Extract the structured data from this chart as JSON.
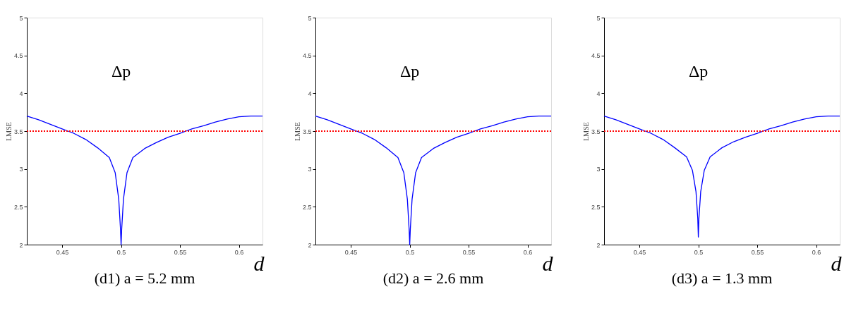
{
  "chart_data": [
    {
      "type": "line",
      "title": "(d1)  a = 5.2  mm",
      "xlabel": "d",
      "ylabel": "LMSE",
      "xlim": [
        0.42,
        0.62
      ],
      "ylim": [
        2,
        5
      ],
      "xticks": [
        0.45,
        0.5,
        0.55,
        0.6
      ],
      "yticks": [
        2,
        2.5,
        3,
        3.5,
        4,
        4.5,
        5
      ],
      "grid": false,
      "legend": false,
      "x": [
        0.42,
        0.43,
        0.44,
        0.45,
        0.455,
        0.46,
        0.47,
        0.48,
        0.49,
        0.495,
        0.498,
        0.4995,
        0.5,
        0.5005,
        0.502,
        0.505,
        0.51,
        0.52,
        0.53,
        0.54,
        0.55,
        0.555,
        0.56,
        0.57,
        0.58,
        0.59,
        0.6,
        0.61,
        0.62
      ],
      "series": [
        {
          "name": "Δp",
          "color": "#0000ff",
          "values": [
            3.7,
            3.65,
            3.59,
            3.53,
            3.5,
            3.47,
            3.39,
            3.28,
            3.15,
            2.95,
            2.6,
            2.2,
            2.0,
            2.2,
            2.6,
            2.95,
            3.15,
            3.27,
            3.35,
            3.42,
            3.47,
            3.5,
            3.53,
            3.57,
            3.62,
            3.66,
            3.69,
            3.7,
            3.7
          ]
        }
      ],
      "ref_lines": [
        {
          "axis": "y",
          "value": 3.5,
          "color": "#ff0000",
          "line_style": "dotted"
        }
      ]
    },
    {
      "type": "line",
      "title": "(d2)  a = 2.6  mm",
      "xlabel": "d",
      "ylabel": "LMSE",
      "xlim": [
        0.42,
        0.62
      ],
      "ylim": [
        2,
        5
      ],
      "xticks": [
        0.45,
        0.5,
        0.55,
        0.6
      ],
      "yticks": [
        2,
        2.5,
        3,
        3.5,
        4,
        4.5,
        5
      ],
      "grid": false,
      "legend": false,
      "x": [
        0.42,
        0.43,
        0.44,
        0.45,
        0.455,
        0.46,
        0.47,
        0.48,
        0.49,
        0.495,
        0.498,
        0.4995,
        0.5,
        0.5005,
        0.502,
        0.505,
        0.51,
        0.52,
        0.53,
        0.54,
        0.55,
        0.555,
        0.56,
        0.57,
        0.58,
        0.59,
        0.6,
        0.61,
        0.62
      ],
      "series": [
        {
          "name": "Δp",
          "color": "#0000ff",
          "values": [
            3.7,
            3.65,
            3.59,
            3.53,
            3.5,
            3.47,
            3.39,
            3.28,
            3.15,
            2.95,
            2.6,
            2.2,
            2.0,
            2.2,
            2.6,
            2.95,
            3.15,
            3.27,
            3.35,
            3.42,
            3.47,
            3.5,
            3.53,
            3.57,
            3.62,
            3.66,
            3.69,
            3.7,
            3.7
          ]
        }
      ],
      "ref_lines": [
        {
          "axis": "y",
          "value": 3.5,
          "color": "#ff0000",
          "line_style": "dotted"
        }
      ]
    },
    {
      "type": "line",
      "title": "(d3)  a = 1.3  mm",
      "xlabel": "d",
      "ylabel": "LMSE",
      "xlim": [
        0.42,
        0.62
      ],
      "ylim": [
        2,
        5
      ],
      "xticks": [
        0.45,
        0.5,
        0.55,
        0.6
      ],
      "yticks": [
        2,
        2.5,
        3,
        3.5,
        4,
        4.5,
        5
      ],
      "grid": false,
      "legend": false,
      "x": [
        0.42,
        0.43,
        0.44,
        0.45,
        0.455,
        0.46,
        0.47,
        0.48,
        0.49,
        0.495,
        0.498,
        0.4995,
        0.5,
        0.5005,
        0.502,
        0.505,
        0.51,
        0.52,
        0.53,
        0.54,
        0.55,
        0.555,
        0.56,
        0.57,
        0.58,
        0.59,
        0.6,
        0.61,
        0.62
      ],
      "series": [
        {
          "name": "Δp",
          "color": "#0000ff",
          "values": [
            3.7,
            3.65,
            3.59,
            3.53,
            3.5,
            3.47,
            3.39,
            3.28,
            3.16,
            2.98,
            2.7,
            2.35,
            2.1,
            2.35,
            2.7,
            2.98,
            3.16,
            3.28,
            3.36,
            3.42,
            3.47,
            3.5,
            3.53,
            3.57,
            3.62,
            3.66,
            3.69,
            3.7,
            3.7
          ]
        }
      ],
      "ref_lines": [
        {
          "axis": "y",
          "value": 3.5,
          "color": "#ff0000",
          "line_style": "dotted"
        }
      ]
    }
  ]
}
